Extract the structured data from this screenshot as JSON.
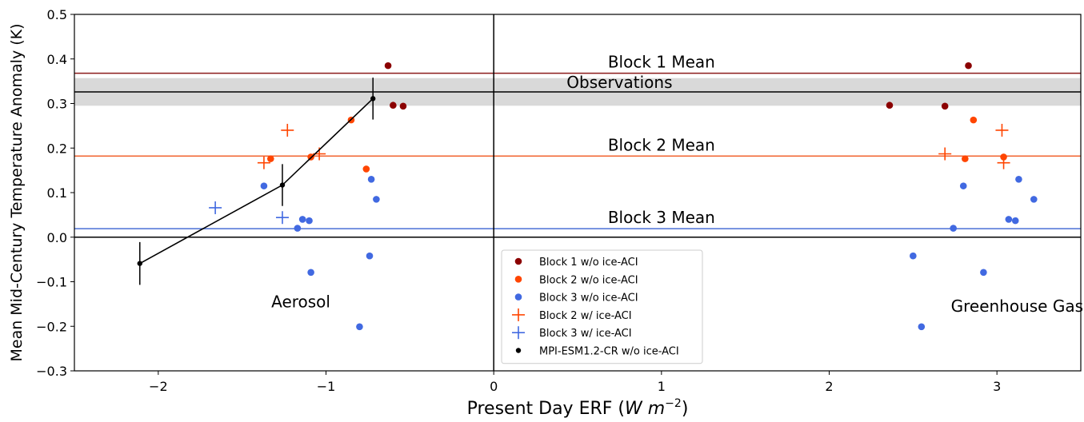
{
  "chart_data": {
    "type": "scatter",
    "xlabel": "Present Day ERF (W m⁻²)",
    "xlabel_main": "Present Day ERF (",
    "xlabel_unit": "W m",
    "xlabel_exp": "−2",
    "xlabel_close": ")",
    "ylabel": "Mean Mid-Century Temperature Anomaly (K)",
    "xlim": [
      -2.5,
      3.5
    ],
    "ylim": [
      -0.3,
      0.5
    ],
    "xticks": [
      -2,
      -1,
      0,
      1,
      2,
      3
    ],
    "xtick_labels": [
      "−2",
      "−1",
      "0",
      "1",
      "2",
      "3"
    ],
    "yticks": [
      -0.3,
      -0.2,
      -0.1,
      0.0,
      0.1,
      0.2,
      0.3,
      0.4,
      0.5
    ],
    "ytick_labels": [
      "−0.3",
      "−0.2",
      "−0.1",
      "0.0",
      "0.1",
      "0.2",
      "0.3",
      "0.4",
      "0.5"
    ],
    "grid": false,
    "legend_position": "lower-center",
    "observations": {
      "label": "Observations",
      "value": 0.326,
      "band": [
        0.295,
        0.357
      ],
      "color": "#000000",
      "band_color": "#d9d9d9"
    },
    "hlines": [
      {
        "label": "Block 1 Mean",
        "value": 0.368,
        "color": "#8b1a1a"
      },
      {
        "label": "Block 2 Mean",
        "value": 0.182,
        "color": "#f26430"
      },
      {
        "label": "Block 3 Mean",
        "value": 0.019,
        "color": "#4a6fd6"
      },
      {
        "label": "",
        "value": 0.0,
        "color": "#000000"
      }
    ],
    "zero_vline": 0,
    "annotations": [
      {
        "text": "Aerosol",
        "x": -1.15,
        "y": -0.145
      },
      {
        "text": "Greenhouse Gas",
        "x": 3.12,
        "y": -0.155
      }
    ],
    "series": [
      {
        "name": "Block 1 w/o ice-ACI",
        "marker": "dot",
        "color": "#8b0000",
        "points": [
          [
            -0.63,
            0.385
          ],
          [
            -0.6,
            0.296
          ],
          [
            -0.54,
            0.294
          ],
          [
            2.36,
            0.296
          ],
          [
            2.69,
            0.294
          ],
          [
            2.83,
            0.385
          ]
        ]
      },
      {
        "name": "Block 2 w/o ice-ACI",
        "marker": "dot",
        "color": "#ff4500",
        "points": [
          [
            -1.33,
            0.176
          ],
          [
            -1.09,
            0.18
          ],
          [
            -0.85,
            0.263
          ],
          [
            -0.76,
            0.153
          ],
          [
            2.81,
            0.176
          ],
          [
            2.86,
            0.263
          ],
          [
            3.04,
            0.18
          ]
        ]
      },
      {
        "name": "Block 3 w/o ice-ACI",
        "marker": "dot",
        "color": "#4169e1",
        "points": [
          [
            -1.37,
            0.115
          ],
          [
            -1.17,
            0.02
          ],
          [
            -1.14,
            0.04
          ],
          [
            -1.1,
            0.037
          ],
          [
            -1.09,
            -0.079
          ],
          [
            -0.8,
            -0.201
          ],
          [
            -0.74,
            -0.042
          ],
          [
            -0.73,
            0.13
          ],
          [
            -0.7,
            0.085
          ],
          [
            2.5,
            -0.042
          ],
          [
            2.55,
            -0.201
          ],
          [
            2.74,
            0.02
          ],
          [
            2.8,
            0.115
          ],
          [
            2.92,
            -0.079
          ],
          [
            3.07,
            0.04
          ],
          [
            3.11,
            0.037
          ],
          [
            3.13,
            0.13
          ],
          [
            3.22,
            0.085
          ]
        ]
      },
      {
        "name": "Block 2 w/ ice-ACI",
        "marker": "plus",
        "color": "#ff4500",
        "points": [
          [
            -1.37,
            0.167
          ],
          [
            -1.23,
            0.24
          ],
          [
            -1.04,
            0.187
          ],
          [
            2.69,
            0.187
          ],
          [
            3.03,
            0.24
          ],
          [
            3.04,
            0.167
          ]
        ]
      },
      {
        "name": "Block 3 w/ ice-ACI",
        "marker": "plus",
        "color": "#4169e1",
        "points": [
          [
            -1.66,
            0.066
          ],
          [
            -1.26,
            0.044
          ]
        ]
      },
      {
        "name": "MPI-ESM1.2-CR w/o ice-ACI",
        "marker": "dot-small",
        "color": "#000000",
        "line": true,
        "points": [
          [
            -2.11,
            -0.059
          ],
          [
            -1.26,
            0.117
          ],
          [
            -0.72,
            0.311
          ]
        ],
        "yerr": [
          0.048,
          0.047,
          0.047
        ]
      }
    ]
  }
}
